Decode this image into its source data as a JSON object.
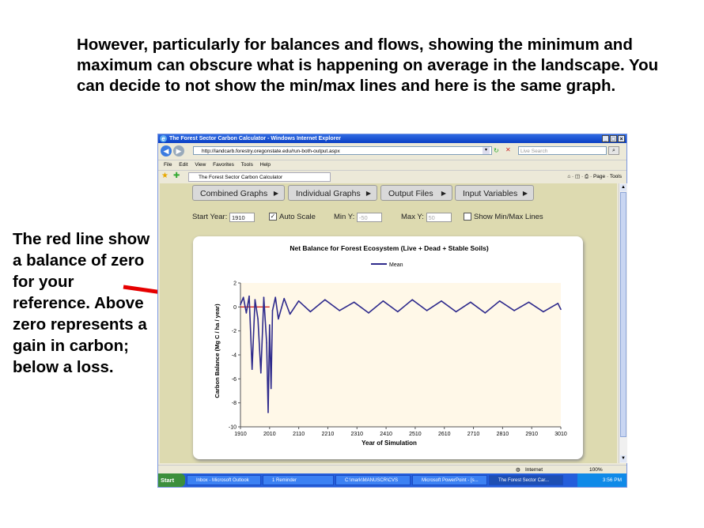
{
  "slide": {
    "heading": "However, particularly for balances and flows, showing the minimum and maximum can obscure what is happening on average in the landscape. You can decide to not show the min/max lines and here is the same graph.",
    "side_note": "The red line show a balance of zero for your reference. Above zero represents a gain in carbon; below a loss."
  },
  "browser": {
    "title": "The Forest Sector Carbon Calculator - Windows Internet Explorer",
    "url": "http://landcarb.forestry.oregonstate.edu/run-both-output.aspx",
    "search_placeholder": "Live Search",
    "menu": [
      "File",
      "Edit",
      "View",
      "Favorites",
      "Tools",
      "Help"
    ],
    "tab_title": "The Forest Sector Carbon Calculator",
    "command_page": "Page",
    "command_tools": "Tools",
    "status_zone": "Internet",
    "zoom": "100%"
  },
  "app": {
    "menu_buttons": [
      "Combined Graphs",
      "Individual Graphs",
      "Output Files",
      "Input Variables"
    ],
    "start_year_label": "Start Year:",
    "start_year_value": "1910",
    "auto_scale_label": "Auto Scale",
    "auto_scale_checked": true,
    "min_y_label": "Min Y:",
    "min_y_value": "-50",
    "max_y_label": "Max Y:",
    "max_y_value": "50",
    "show_minmax_label": "Show Min/Max Lines",
    "show_minmax_checked": false
  },
  "taskbar": {
    "start": "Start",
    "items": [
      "Inbox - Microsoft Outlook",
      "1 Reminder",
      "C:\\mark\\MANUSCR\\CVS",
      "Microsoft PowerPoint - [s...",
      "The Forest Sector Car..."
    ],
    "clock": "3:56 PM"
  },
  "colors": {
    "series": "#2e2a8c",
    "reference": "#cc0000",
    "plot_bg": "#fff8e8",
    "arrow": "#e60000"
  },
  "chart_data": {
    "type": "line",
    "title": "Net Balance for Forest Ecosystem (Live + Dead + Stable Soils)",
    "xlabel": "Year of Simulation",
    "ylabel": "Carbon Balance (Mg C / ha / year)",
    "xlim": [
      1910,
      3010
    ],
    "ylim": [
      -10,
      2
    ],
    "xticks": [
      "1910",
      "2010",
      "2110",
      "2210",
      "2310",
      "2410",
      "2510",
      "2610",
      "2710",
      "2810",
      "2910",
      "3010"
    ],
    "yticks": [
      "2",
      "0",
      "-2",
      "-4",
      "-6",
      "-8",
      "-10"
    ],
    "legend": "top-center",
    "grid": false,
    "reference_line": 0,
    "series": [
      {
        "name": "Mean",
        "x": [
          1910,
          1920,
          1930,
          1940,
          1950,
          1960,
          1970,
          1980,
          1990,
          2000,
          2005,
          2010,
          2015,
          2020,
          2030,
          2040,
          2060,
          2080,
          2110,
          2150,
          2200,
          2250,
          2300,
          2350,
          2400,
          2450,
          2500,
          2550,
          2600,
          2650,
          2700,
          2750,
          2800,
          2850,
          2900,
          2950,
          3000,
          3010
        ],
        "y": [
          0.2,
          0.8,
          -0.5,
          0.9,
          -5.2,
          0.6,
          -1.0,
          -5.5,
          0.8,
          -3.0,
          -8.8,
          -1.5,
          -6.8,
          -0.3,
          0.8,
          -1.0,
          0.7,
          -0.6,
          0.5,
          -0.4,
          0.6,
          -0.3,
          0.4,
          -0.5,
          0.5,
          -0.4,
          0.6,
          -0.3,
          0.5,
          -0.4,
          0.4,
          -0.5,
          0.5,
          -0.3,
          0.4,
          -0.4,
          0.3,
          -0.2
        ]
      }
    ]
  }
}
